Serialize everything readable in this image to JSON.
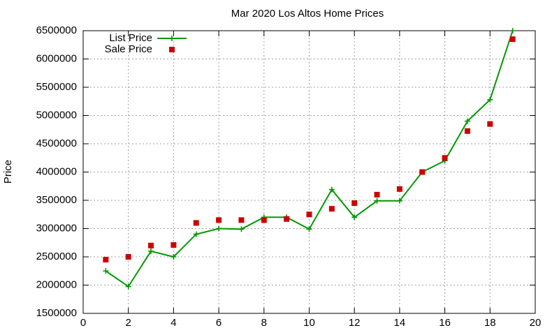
{
  "chart_data": {
    "type": "line",
    "title": "Mar 2020 Los Altos Home Prices",
    "y_label": "Price",
    "x": [
      1,
      2,
      3,
      4,
      5,
      6,
      7,
      8,
      9,
      10,
      11,
      12,
      13,
      14,
      15,
      16,
      17,
      18,
      19
    ],
    "series": [
      {
        "name": "List Price",
        "color": "#009900",
        "line": true,
        "marker": "plus",
        "values": [
          2250000,
          1975000,
          2600000,
          2500000,
          2900000,
          3000000,
          2990000,
          3200000,
          3200000,
          2990000,
          3690000,
          3200000,
          3490000,
          3490000,
          4000000,
          4200000,
          4900000,
          5280000,
          6500000
        ]
      },
      {
        "name": "Sale Price",
        "color": "#cc0000",
        "line": false,
        "marker": "square",
        "values": [
          2450000,
          2500000,
          2700000,
          2710000,
          3100000,
          3150000,
          3150000,
          3150000,
          3170000,
          3250000,
          3350000,
          3450000,
          3600000,
          3700000,
          4000000,
          4250000,
          4725000,
          4850000,
          6350000
        ]
      }
    ],
    "xlim": [
      0,
      20
    ],
    "xticks": [
      0,
      2,
      4,
      6,
      8,
      10,
      12,
      14,
      16,
      18,
      20
    ],
    "ylim": [
      1500000,
      6500000
    ],
    "yticks": [
      1500000,
      2000000,
      2500000,
      3000000,
      3500000,
      4000000,
      4500000,
      5000000,
      5500000,
      6000000,
      6500000
    ],
    "grid": true,
    "legend": "top-left"
  }
}
